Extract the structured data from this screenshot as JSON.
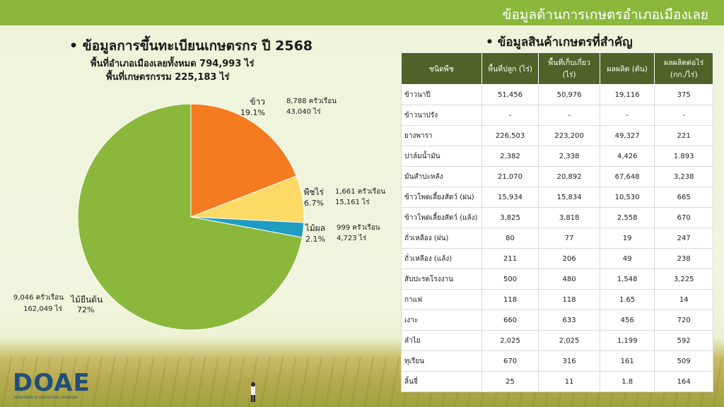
{
  "header": {
    "title": "ข้อมูลด้านการเกษตรอำเภอเมืองเลย"
  },
  "left": {
    "heading": "• ข้อมูลการขึ้นทะเบียนเกษตรกร ปี 2568",
    "sub1": "พื้นที่อำเภอเมืองเลยทั้งหมด 794,993 ไร่",
    "sub2": "พื้นที่เกษตรกรรม 225,183 ไร่"
  },
  "chart_data": {
    "type": "pie",
    "slices": [
      {
        "name": "ข้าว",
        "percent_label": "19.1%",
        "value": 19.1,
        "households": "8,788 ครัวเรือน",
        "area": "43,040 ไร่",
        "color": "#f47b20"
      },
      {
        "name": "พืชไร่",
        "percent_label": "6.7%",
        "value": 6.7,
        "households": "1,661 ครัวเรือน",
        "area": "15,161 ไร่",
        "color": "#ffd966"
      },
      {
        "name": "ไม้ผล",
        "percent_label": "2.1%",
        "value": 2.1,
        "households": "999 ครัวเรือน",
        "area": "4,723 ไร่",
        "color": "#1f9cc2"
      },
      {
        "name": "ไม้ยืนต้น",
        "percent_label": "72%",
        "value": 72.1,
        "households": "9,046 ครัวเรือน",
        "area": "162,049 ไร่",
        "color": "#8bb83c"
      }
    ]
  },
  "right": {
    "heading": "• ข้อมูลสินค้าเกษตรที่สำคัญ",
    "table": {
      "headers": [
        "ชนิดพืช",
        "พื้นที่ปลูก (ไร่)",
        "พื้นที่เก็บเกี่ยว (ไร่)",
        "ผลผลิต (ตัน)",
        "ผลผลิตต่อไร่ (กก./ไร่)"
      ],
      "rows": [
        [
          "ข้าวนาปี",
          "51,456",
          "50,976",
          "19,116",
          "375"
        ],
        [
          "ข้าวนาปรัง",
          "-",
          "-",
          "-",
          "-"
        ],
        [
          "ยางพารา",
          "226,503",
          "223,200",
          "49,327",
          "221"
        ],
        [
          "ปาล์มน้ำมัน",
          "2,382",
          "2,338",
          "4,426",
          "1.893"
        ],
        [
          "มันสำปะหลัง",
          "21,070",
          "20,892",
          "67,648",
          "3,238"
        ],
        [
          "ข้าวโพดเลี้ยงสัตว์ (ฝน)",
          "15,934",
          "15,834",
          "10,530",
          "665"
        ],
        [
          "ข้าวโพดเลี้ยงสัตว์ (แล้ง)",
          "3,825",
          "3,818",
          "2,558",
          "670"
        ],
        [
          "ถั่วเหลือง (ฝน)",
          "80",
          "77",
          "19",
          "247"
        ],
        [
          "ถั่วเหลือง (แล้ง)",
          "211",
          "206",
          "49",
          "238"
        ],
        [
          "สับปะรดโรงงาน",
          "500",
          "480",
          "1,548",
          "3,225"
        ],
        [
          "กาแฟ",
          "118",
          "118",
          "1.65",
          "14"
        ],
        [
          "เงาะ",
          "660",
          "633",
          "456",
          "720"
        ],
        [
          "ลำไย",
          "2,025",
          "2,025",
          "1,199",
          "592"
        ],
        [
          "ทุเรียน",
          "670",
          "316",
          "161",
          "509"
        ],
        [
          "ลิ้นจี่",
          "25",
          "11",
          "1.8",
          "164"
        ]
      ]
    }
  },
  "logo": {
    "text": "DOAE",
    "sub": "DEPARTMENT OF AGRICULTURAL EXTENSION"
  }
}
